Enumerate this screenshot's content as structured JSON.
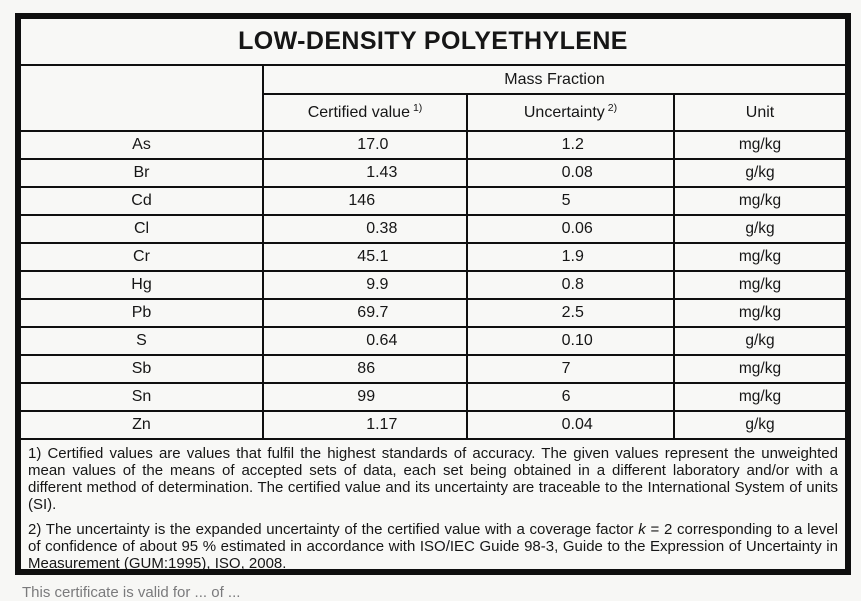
{
  "page": {
    "title": "LOW-DENSITY POLYETHYLENE",
    "clipped_footer_text": "This certificate is valid for ... of ..."
  },
  "table": {
    "group_header": "Mass Fraction",
    "columns": {
      "certified_value": "Certified value",
      "certified_value_note_ref": "1)",
      "uncertainty": "Uncertainty",
      "uncertainty_note_ref": "2)",
      "unit": "Unit"
    },
    "rows": [
      {
        "element": "As",
        "certified_value": "17.0",
        "uncertainty": "1.2",
        "unit": "mg/kg"
      },
      {
        "element": "Br",
        "certified_value": "1.43",
        "uncertainty": "0.08",
        "unit": "g/kg"
      },
      {
        "element": "Cd",
        "certified_value": "146",
        "uncertainty": "5",
        "unit": "mg/kg"
      },
      {
        "element": "Cl",
        "certified_value": "0.38",
        "uncertainty": "0.06",
        "unit": "g/kg"
      },
      {
        "element": "Cr",
        "certified_value": "45.1",
        "uncertainty": "1.9",
        "unit": "mg/kg"
      },
      {
        "element": "Hg",
        "certified_value": "9.9",
        "uncertainty": "0.8",
        "unit": "mg/kg"
      },
      {
        "element": "Pb",
        "certified_value": "69.7",
        "uncertainty": "2.5",
        "unit": "mg/kg"
      },
      {
        "element": "S",
        "certified_value": "0.64",
        "uncertainty": "0.10",
        "unit": "g/kg"
      },
      {
        "element": "Sb",
        "certified_value": "86",
        "uncertainty": "7",
        "unit": "mg/kg"
      },
      {
        "element": "Sn",
        "certified_value": "99",
        "uncertainty": "6",
        "unit": "mg/kg"
      },
      {
        "element": "Zn",
        "certified_value": "1.17",
        "uncertainty": "0.04",
        "unit": "g/kg"
      }
    ]
  },
  "footnotes": {
    "note1": "1) Certified values are values that fulfil the highest standards of accuracy. The given values represent the unweighted mean values of the means of accepted sets of data, each set being obtained in a different laboratory and/or with a different method of determination. The certified value and its uncertainty are traceable to the International System of units (SI).",
    "note2_before_k": "2) The uncertainty is the expanded uncertainty of the certified value with a coverage factor ",
    "note2_k": "k",
    "note2_after_k": " = 2 corresponding to a level of confidence of about 95 % estimated in accordance with ISO/IEC Guide 98-3, Guide to the Expression of Uncertainty in Measurement (GUM:1995), ISO, 2008."
  },
  "colors": {
    "border": "#0f0f0f",
    "text": "#161616",
    "page_bg": "#f7f7f5"
  }
}
